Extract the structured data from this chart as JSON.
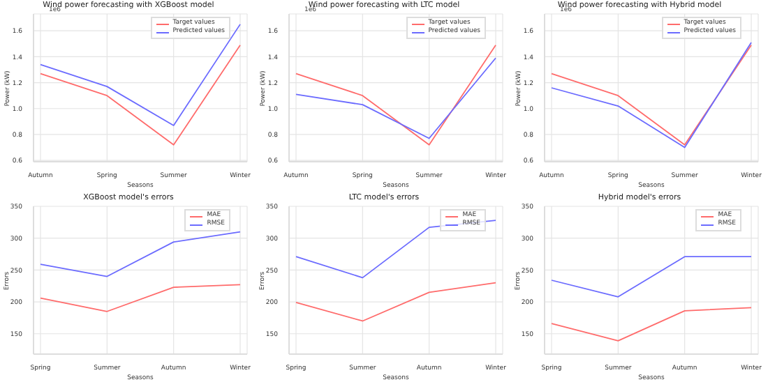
{
  "chart_data": [
    {
      "type": "line",
      "title": "Wind power forecasting with XGBoost model",
      "xlabel": "Seasons",
      "ylabel": "Power (kW)",
      "annotations": [
        "1e6"
      ],
      "categories": [
        "Autumn",
        "Spring",
        "Summer",
        "Winter"
      ],
      "series": [
        {
          "name": "Target values",
          "color": "#ff6b6b",
          "values": [
            1.27,
            1.1,
            0.72,
            1.49
          ]
        },
        {
          "name": "Predicted values",
          "color": "#6b6bff",
          "values": [
            1.34,
            1.17,
            0.87,
            1.65
          ]
        }
      ],
      "ylim": [
        0.59,
        1.73
      ],
      "yticks": [
        {
          "value": 0.6,
          "label": "0.6"
        },
        {
          "value": 0.8,
          "label": "0.8"
        },
        {
          "value": 1.0,
          "label": "1.0"
        },
        {
          "value": 1.2,
          "label": "1.2"
        },
        {
          "value": 1.4,
          "label": "1.4"
        },
        {
          "value": 1.6,
          "label": "1.6"
        }
      ],
      "grid": true,
      "legend": "top right"
    },
    {
      "type": "line",
      "title": "Wind power forecasting with LTC model",
      "xlabel": "Seasons",
      "ylabel": "Power (kW)",
      "annotations": [
        "1e6"
      ],
      "categories": [
        "Autumn",
        "Spring",
        "Summer",
        "Winter"
      ],
      "series": [
        {
          "name": "Target values",
          "color": "#ff6b6b",
          "values": [
            1.27,
            1.1,
            0.72,
            1.49
          ]
        },
        {
          "name": "Predicted values",
          "color": "#6b6bff",
          "values": [
            1.11,
            1.03,
            0.77,
            1.39
          ]
        }
      ],
      "ylim": [
        0.59,
        1.73
      ],
      "yticks": [
        {
          "value": 0.6,
          "label": "0.6"
        },
        {
          "value": 0.8,
          "label": "0.8"
        },
        {
          "value": 1.0,
          "label": "1.0"
        },
        {
          "value": 1.2,
          "label": "1.2"
        },
        {
          "value": 1.4,
          "label": "1.4"
        },
        {
          "value": 1.6,
          "label": "1.6"
        }
      ],
      "grid": true,
      "legend": "top right"
    },
    {
      "type": "line",
      "title": "Wind power forecasting with Hybrid model",
      "xlabel": "Seasons",
      "ylabel": "Power (kW)",
      "annotations": [
        "1e6"
      ],
      "categories": [
        "Autumn",
        "Spring",
        "Summer",
        "Winter"
      ],
      "series": [
        {
          "name": "Target values",
          "color": "#ff6b6b",
          "values": [
            1.27,
            1.1,
            0.72,
            1.49
          ]
        },
        {
          "name": "Predicted values",
          "color": "#6b6bff",
          "values": [
            1.16,
            1.02,
            0.7,
            1.51
          ]
        }
      ],
      "ylim": [
        0.59,
        1.73
      ],
      "yticks": [
        {
          "value": 0.6,
          "label": "0.6"
        },
        {
          "value": 0.8,
          "label": "0.8"
        },
        {
          "value": 1.0,
          "label": "1.0"
        },
        {
          "value": 1.2,
          "label": "1.2"
        },
        {
          "value": 1.4,
          "label": "1.4"
        },
        {
          "value": 1.6,
          "label": "1.6"
        }
      ],
      "grid": true,
      "legend": "top right"
    },
    {
      "type": "line",
      "title": "XGBoost model's errors",
      "xlabel": "Seasons",
      "ylabel": "Errors",
      "categories": [
        "Spring",
        "Summer",
        "Autumn",
        "Winter"
      ],
      "series": [
        {
          "name": "MAE",
          "color": "#ff6b6b",
          "values": [
            206,
            185,
            223,
            227
          ]
        },
        {
          "name": "RMSE",
          "color": "#6b6bff",
          "values": [
            259,
            240,
            294,
            310
          ]
        }
      ],
      "ylim": [
        118,
        350
      ],
      "yticks": [
        150,
        200,
        250,
        300,
        350
      ],
      "grid": true,
      "legend": "top right"
    },
    {
      "type": "line",
      "title": "LTC model's errors",
      "xlabel": "Seasons",
      "ylabel": "Errors",
      "categories": [
        "Spring",
        "Summer",
        "Autumn",
        "Winter"
      ],
      "series": [
        {
          "name": "MAE",
          "color": "#ff6b6b",
          "values": [
            199,
            170,
            215,
            230
          ]
        },
        {
          "name": "RMSE",
          "color": "#6b6bff",
          "values": [
            271,
            238,
            317,
            328
          ]
        }
      ],
      "ylim": [
        118,
        350
      ],
      "yticks": [
        150,
        200,
        250,
        300,
        350
      ],
      "grid": true,
      "legend": "top right"
    },
    {
      "type": "line",
      "title": "Hybrid model's errors",
      "xlabel": "Seasons",
      "ylabel": "Errors",
      "categories": [
        "Spring",
        "Summer",
        "Autumn",
        "Winter"
      ],
      "series": [
        {
          "name": "MAE",
          "color": "#ff6b6b",
          "values": [
            166,
            139,
            186,
            191
          ]
        },
        {
          "name": "RMSE",
          "color": "#6b6bff",
          "values": [
            234,
            208,
            271,
            271
          ]
        }
      ],
      "ylim": [
        118,
        350
      ],
      "yticks": [
        150,
        200,
        250,
        300,
        350
      ],
      "grid": true,
      "legend": "top right"
    }
  ]
}
